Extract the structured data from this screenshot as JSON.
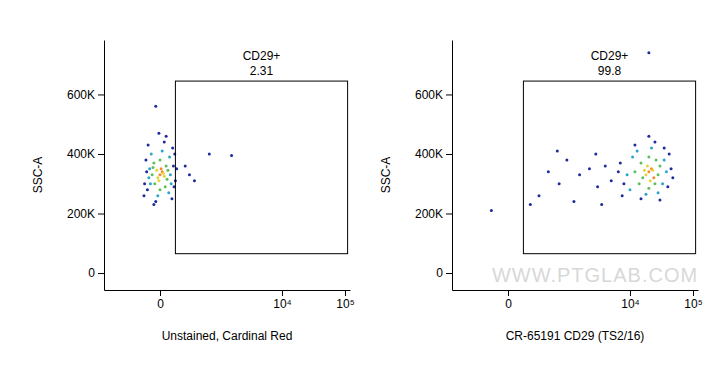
{
  "chart_data": [
    {
      "type": "scatter",
      "log": "x",
      "x_label": "Unstained, Cardinal Red",
      "y_label": "SSC-A",
      "xlim": [
        -800,
        120000
      ],
      "ylim": [
        -57000,
        783000
      ],
      "xticks": [
        0,
        {
          "value": 10000,
          "label": "10⁴"
        },
        {
          "value": 100000,
          "label": "10⁵"
        }
      ],
      "yticks": [
        0,
        {
          "value": 200000,
          "label": "200K"
        },
        {
          "value": 400000,
          "label": "400K"
        },
        {
          "value": 600000,
          "label": "600K"
        }
      ],
      "gate": {
        "name": "CD29+",
        "percent": 2.31,
        "x": [
          90,
          110000
        ],
        "y": [
          65000,
          645000
        ]
      },
      "x": [
        0,
        10,
        -10,
        5,
        -5,
        15,
        -15,
        20,
        30,
        -25,
        25,
        -30,
        40,
        -40,
        0,
        0,
        35,
        -35,
        50,
        -50,
        45,
        -45,
        55,
        -55,
        10,
        -10,
        60,
        -60,
        70,
        -70,
        65,
        -65,
        75,
        -75,
        20,
        -20,
        80,
        -80,
        90,
        -90,
        30,
        -30,
        85,
        -5,
        100,
        -95,
        -20,
        230,
        600,
        1500,
        300,
        180
      ],
      "values": [
        330000,
        340000,
        320000,
        350000,
        310000,
        335000,
        345000,
        325000,
        360000,
        300000,
        290000,
        370000,
        345000,
        330000,
        380000,
        280000,
        315000,
        355000,
        390000,
        300000,
        270000,
        400000,
        330000,
        350000,
        410000,
        260000,
        300000,
        320000,
        420000,
        280000,
        250000,
        430000,
        360000,
        340000,
        440000,
        240000,
        290000,
        380000,
        310000,
        300000,
        460000,
        230000,
        400000,
        470000,
        350000,
        260000,
        560000,
        330000,
        400000,
        395000,
        310000,
        360000
      ],
      "colors": [
        "#f08b2c",
        "#f08b2c",
        "#e6d23a",
        "#f08b2c",
        "#e6d23a",
        "#e6d23a",
        "#e6d23a",
        "#e6d23a",
        "#5cbf5a",
        "#5cbf5a",
        "#5cbf5a",
        "#5cbf5a",
        "#5cbf5a",
        "#5cbf5a",
        "#5cbf5a",
        "#5cbf5a",
        "#5cbf5a",
        "#5cbf5a",
        "#2aa6c9",
        "#2aa6c9",
        "#2aa6c9",
        "#2aa6c9",
        "#2aa6c9",
        "#2aa6c9",
        "#2aa6c9",
        "#2aa6c9",
        "#2aa6c9",
        "#2aa6c9",
        "#1f2a9c",
        "#1f2a9c",
        "#1f2a9c",
        "#1f2a9c",
        "#1f2a9c",
        "#1f2a9c",
        "#1f2a9c",
        "#1f2a9c",
        "#1f2a9c",
        "#1f2a9c",
        "#1f2a9c",
        "#1f2a9c",
        "#1f2a9c",
        "#1f2a9c",
        "#1f2a9c",
        "#1f2a9c",
        "#1f2a9c",
        "#1f2a9c",
        "#1f2a9c",
        "#1f2a9c",
        "#1f2a9c",
        "#1f2a9c",
        "#1f2a9c",
        "#1f2a9c"
      ]
    },
    {
      "type": "scatter",
      "log": "x",
      "x_label": "CR-65191 CD29 (TS2/16)",
      "y_label": "SSC-A",
      "watermark": "WWW.PTGLAB.COM",
      "xlim": [
        -800,
        120000
      ],
      "ylim": [
        -57000,
        783000
      ],
      "xticks": [
        0,
        {
          "value": 10000,
          "label": "10⁴"
        },
        {
          "value": 100000,
          "label": "10⁵"
        }
      ],
      "yticks": [
        0,
        {
          "value": 200000,
          "label": "200K"
        },
        {
          "value": 400000,
          "label": "400K"
        },
        {
          "value": 600000,
          "label": "600K"
        }
      ],
      "gate": {
        "name": "CD29+",
        "percent": 99.8,
        "x": [
          90,
          110000
        ],
        "y": [
          65000,
          645000
        ]
      },
      "x": [
        20000,
        22000,
        18000,
        24000,
        19000,
        21000,
        23000,
        17000,
        15000,
        28000,
        14000,
        30000,
        20000,
        20000,
        26000,
        12000,
        25000,
        16000,
        11000,
        33000,
        10000,
        35000,
        22000,
        18000,
        38000,
        9000,
        28000,
        13000,
        8000,
        40000,
        7000,
        42000,
        25000,
        15000,
        45000,
        6500,
        30000,
        12000,
        48000,
        7500,
        20000,
        35000,
        5000,
        4000,
        3000,
        2200,
        1500,
        900,
        650,
        400,
        250,
        1200,
        2800,
        3500,
        600,
        20000,
        -100,
        150
      ],
      "values": [
        340000,
        350000,
        330000,
        320000,
        360000,
        310000,
        345000,
        345000,
        370000,
        330000,
        300000,
        360000,
        390000,
        285000,
        380000,
        340000,
        300000,
        320000,
        390000,
        300000,
        280000,
        380000,
        420000,
        265000,
        340000,
        330000,
        270000,
        410000,
        300000,
        290000,
        370000,
        400000,
        440000,
        250000,
        350000,
        340000,
        245000,
        430000,
        320000,
        260000,
        460000,
        420000,
        310000,
        360000,
        290000,
        350000,
        330000,
        380000,
        300000,
        340000,
        260000,
        240000,
        400000,
        230000,
        410000,
        740000,
        210000,
        230000
      ],
      "colors": [
        "#f08b2c",
        "#f08b2c",
        "#e6d23a",
        "#f08b2c",
        "#e6d23a",
        "#e6d23a",
        "#e6d23a",
        "#e6d23a",
        "#5cbf5a",
        "#5cbf5a",
        "#5cbf5a",
        "#5cbf5a",
        "#5cbf5a",
        "#5cbf5a",
        "#5cbf5a",
        "#5cbf5a",
        "#5cbf5a",
        "#5cbf5a",
        "#2aa6c9",
        "#2aa6c9",
        "#2aa6c9",
        "#2aa6c9",
        "#2aa6c9",
        "#2aa6c9",
        "#2aa6c9",
        "#2aa6c9",
        "#2aa6c9",
        "#2aa6c9",
        "#1f2a9c",
        "#1f2a9c",
        "#1f2a9c",
        "#1f2a9c",
        "#1f2a9c",
        "#1f2a9c",
        "#1f2a9c",
        "#1f2a9c",
        "#1f2a9c",
        "#1f2a9c",
        "#1f2a9c",
        "#1f2a9c",
        "#1f2a9c",
        "#1f2a9c",
        "#1f2a9c",
        "#1f2a9c",
        "#1f2a9c",
        "#1f2a9c",
        "#1f2a9c",
        "#1f2a9c",
        "#1f2a9c",
        "#1f2a9c",
        "#1f2a9c",
        "#1f2a9c",
        "#1f2a9c",
        "#1f2a9c",
        "#1f2a9c",
        "#1f2a9c",
        "#1f2a9c",
        "#1f2a9c"
      ]
    }
  ]
}
